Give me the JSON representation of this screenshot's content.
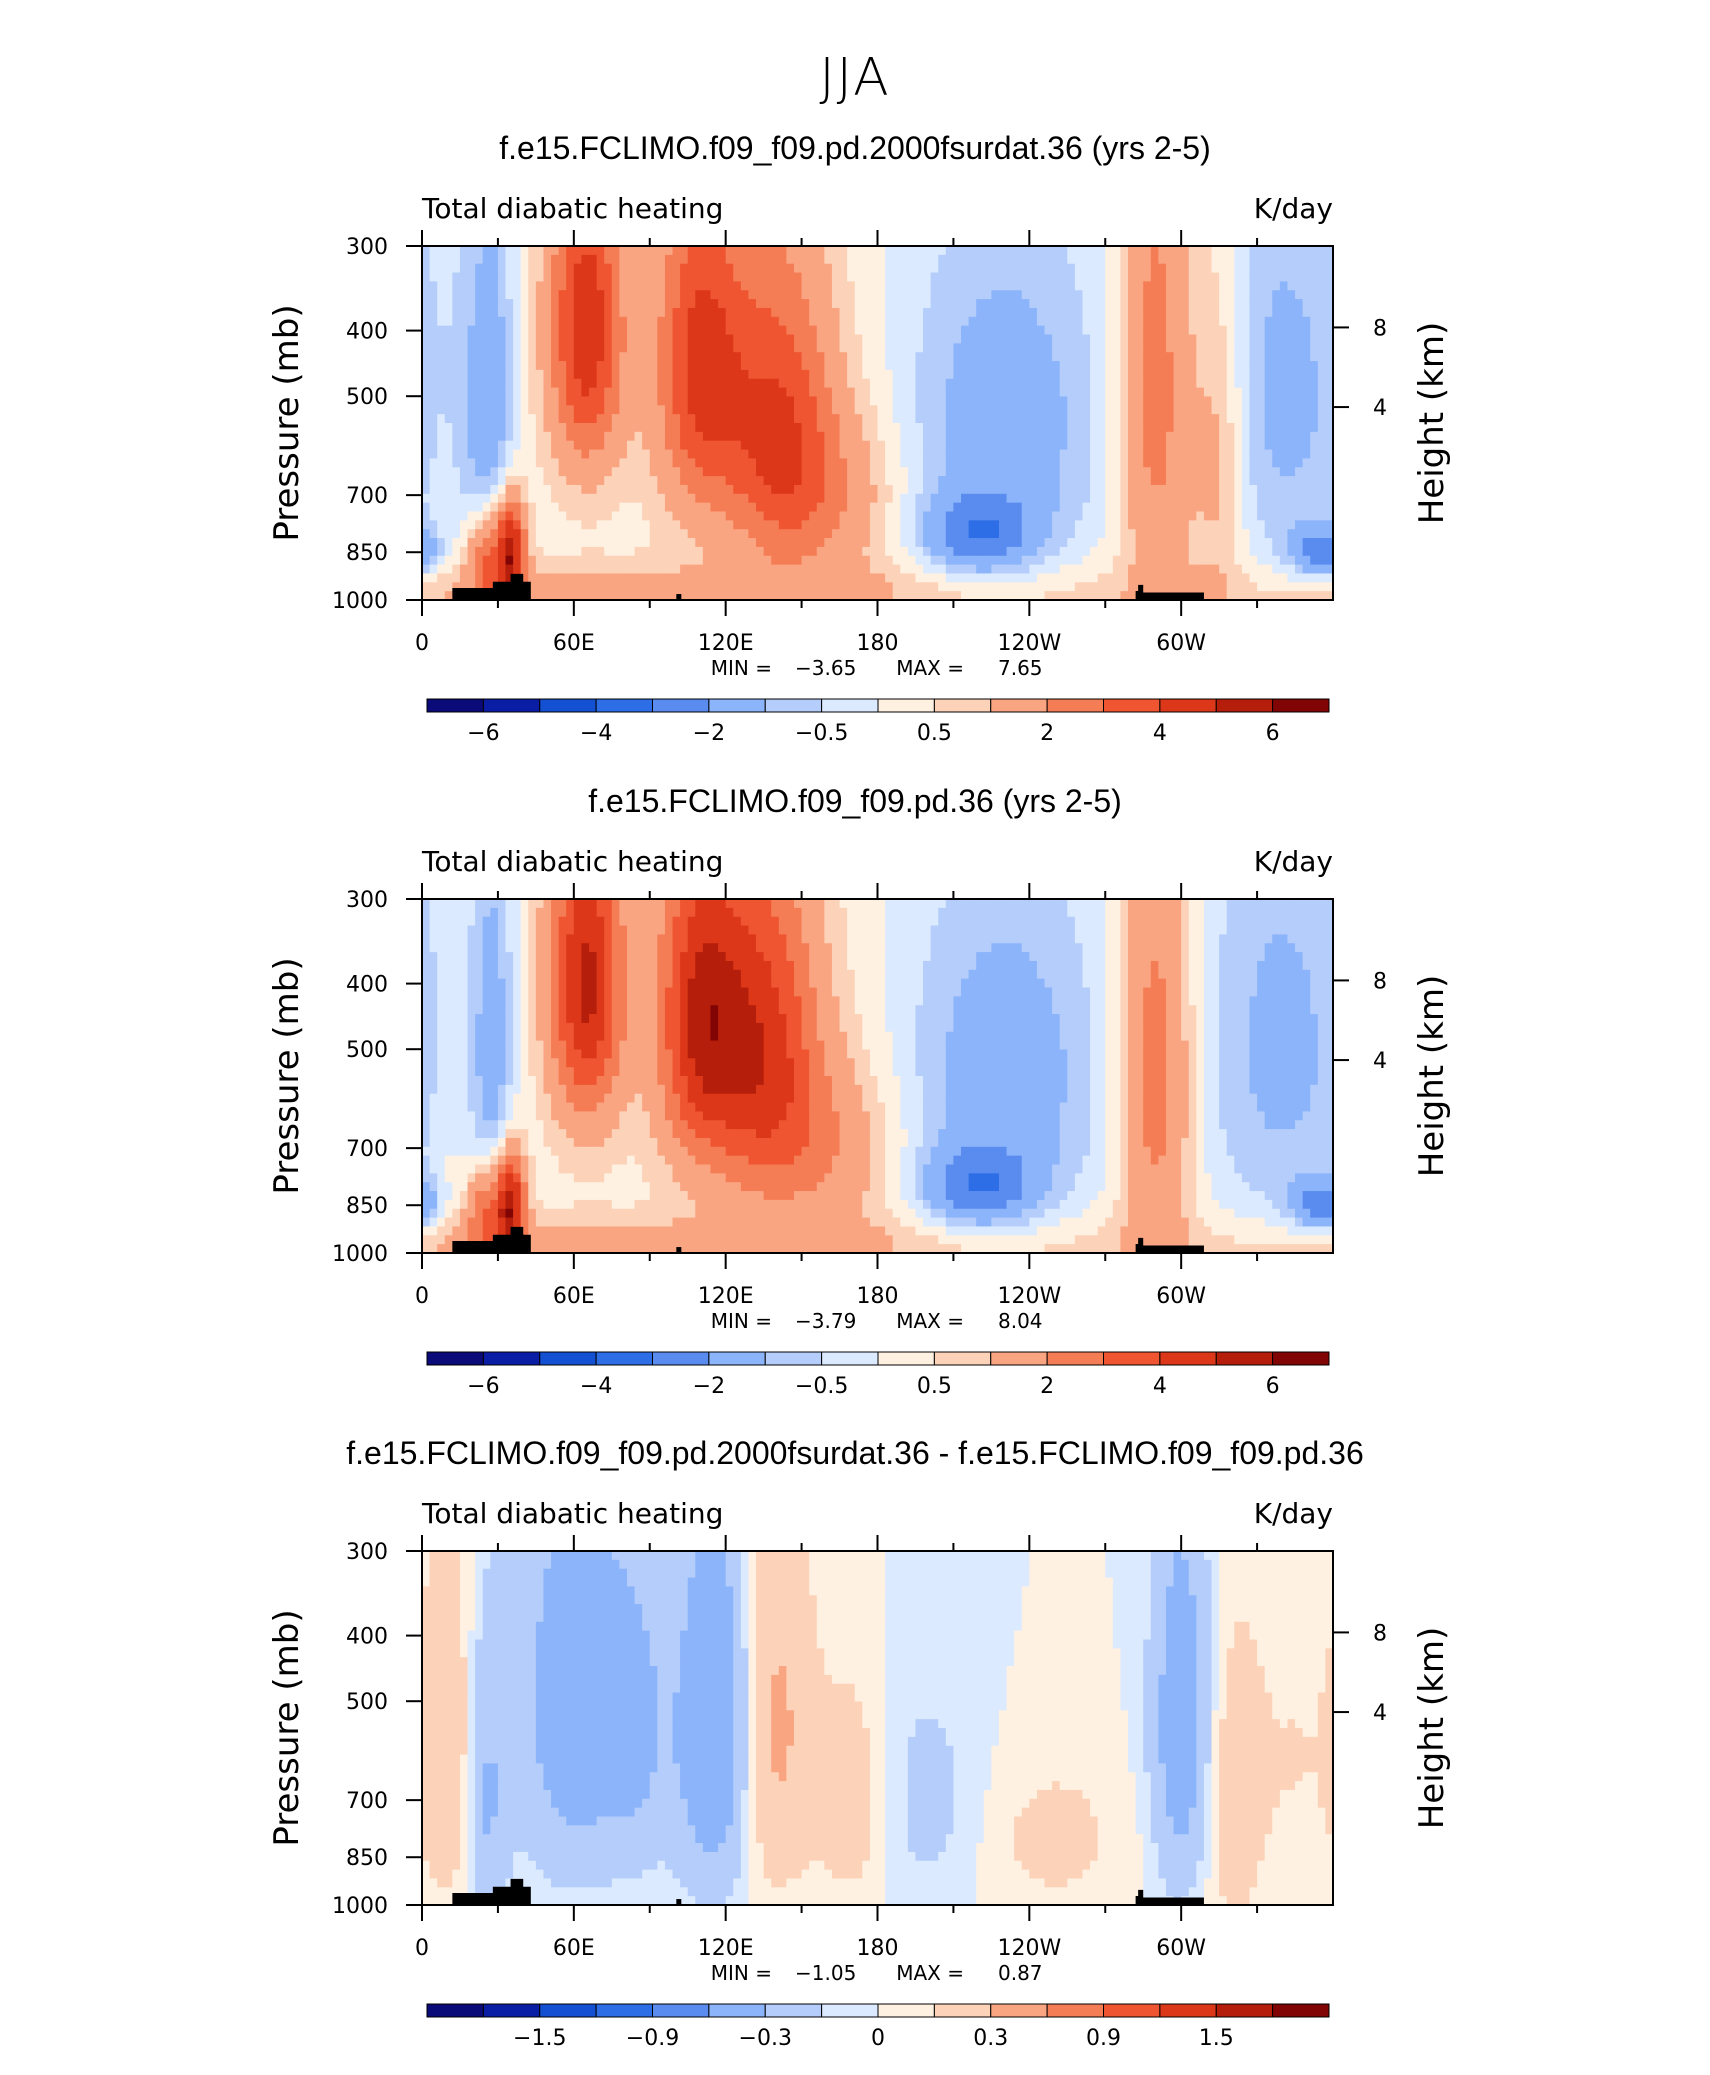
{
  "page": {
    "title": "JJA"
  },
  "panels": [
    {
      "title": "f.e15.FCLIMO.f09_f09.pd.2000fsurdat.36 (yrs 2-5)",
      "left_label": "Total diabatic heating",
      "right_label": "K/day",
      "min_label": "MIN =",
      "min_value": "−3.65",
      "max_label": "MAX =",
      "max_value": "7.65",
      "colorbar": {
        "colors": [
          "#0a0a78",
          "#0a1ea5",
          "#1450d2",
          "#2d6ee6",
          "#5a8cf0",
          "#8cb4fa",
          "#b4cdfa",
          "#dceaff",
          "#fff1e1",
          "#fcd2b9",
          "#faa582",
          "#f57d55",
          "#ee5530",
          "#dc3719",
          "#b41e0a",
          "#820505"
        ],
        "labels": [
          "−6",
          "−4",
          "−2",
          "−0.5",
          "0.5",
          "2",
          "4",
          "6"
        ],
        "label_boundaries": [
          1,
          3,
          5,
          7,
          9,
          11,
          13,
          15
        ]
      }
    },
    {
      "title": "f.e15.FCLIMO.f09_f09.pd.36 (yrs 2-5)",
      "left_label": "Total diabatic heating",
      "right_label": "K/day",
      "min_label": "MIN =",
      "min_value": "−3.79",
      "max_label": "MAX =",
      "max_value": "8.04",
      "colorbar": {
        "colors": [
          "#0a0a78",
          "#0a1ea5",
          "#1450d2",
          "#2d6ee6",
          "#5a8cf0",
          "#8cb4fa",
          "#b4cdfa",
          "#dceaff",
          "#fff1e1",
          "#fcd2b9",
          "#faa582",
          "#f57d55",
          "#ee5530",
          "#dc3719",
          "#b41e0a",
          "#820505"
        ],
        "labels": [
          "−6",
          "−4",
          "−2",
          "−0.5",
          "0.5",
          "2",
          "4",
          "6"
        ],
        "label_boundaries": [
          1,
          3,
          5,
          7,
          9,
          11,
          13,
          15
        ]
      }
    },
    {
      "title": "f.e15.FCLIMO.f09_f09.pd.2000fsurdat.36 - f.e15.FCLIMO.f09_f09.pd.36",
      "left_label": "Total diabatic heating",
      "right_label": "K/day",
      "min_label": "MIN =",
      "min_value": "−1.05",
      "max_label": "MAX =",
      "max_value": "0.87",
      "colorbar": {
        "colors": [
          "#0a0a78",
          "#0a1ea5",
          "#1450d2",
          "#2d6ee6",
          "#5a8cf0",
          "#8cb4fa",
          "#b4cdfa",
          "#dceaff",
          "#fff1e1",
          "#fcd2b9",
          "#faa582",
          "#f57d55",
          "#ee5530",
          "#dc3719",
          "#b41e0a",
          "#820505"
        ],
        "labels": [
          "−1.5",
          "−0.9",
          "−0.3",
          "0",
          "0.3",
          "0.9",
          "1.5"
        ],
        "label_boundaries": [
          2,
          4,
          6,
          8,
          10,
          12,
          14
        ]
      }
    }
  ],
  "chart_data": [
    {
      "type": "heatmap",
      "title": "f.e15.FCLIMO.f09_f09.pd.2000fsurdat.36 (yrs 2-5)",
      "ylabel": "Pressure (mb)",
      "y2label": "Height (km)",
      "x_ticks": [
        "0",
        "60E",
        "120E",
        "180",
        "120W",
        "60W"
      ],
      "y_ticks": [
        "300",
        "400",
        "500",
        "700",
        "850",
        "1000"
      ],
      "y2_ticks": [
        "8",
        "4"
      ],
      "units": "K/day",
      "min": -3.65,
      "max": 7.65,
      "features": [
        {
          "lon": 10,
          "p": 900,
          "value": 0.3,
          "w": 5,
          "h": 600
        },
        {
          "lon": 25,
          "p": 880,
          "value": 3.0,
          "w": 5,
          "h": 200
        },
        {
          "lon": 35,
          "p": 850,
          "value": 5.5,
          "w": 4,
          "h": 200
        },
        {
          "lon": 28,
          "p": 500,
          "value": -1.5,
          "w": 6,
          "h": 500
        },
        {
          "lon": 18,
          "p": 550,
          "value": -0.5,
          "w": 6,
          "h": 500
        },
        {
          "lon": 65,
          "p": 400,
          "value": 4.5,
          "w": 10,
          "h": 300
        },
        {
          "lon": 110,
          "p": 450,
          "value": 4.0,
          "w": 12,
          "h": 350
        },
        {
          "lon": 140,
          "p": 550,
          "value": 3.5,
          "w": 15,
          "h": 400
        },
        {
          "lon": 160,
          "p": 700,
          "value": 1.5,
          "w": 20,
          "h": 300
        },
        {
          "lon": 230,
          "p": 550,
          "value": -1.8,
          "w": 30,
          "h": 500
        },
        {
          "lon": 220,
          "p": 800,
          "value": -2.5,
          "w": 15,
          "h": 150
        },
        {
          "lon": 290,
          "p": 500,
          "value": 2.5,
          "w": 10,
          "h": 600
        },
        {
          "lon": 315,
          "p": 600,
          "value": 1.5,
          "w": 8,
          "h": 500
        },
        {
          "lon": 340,
          "p": 500,
          "value": -1.5,
          "w": 25,
          "h": 600
        },
        {
          "lon": 355,
          "p": 850,
          "value": -2.5,
          "w": 8,
          "h": 100
        },
        {
          "lon": 100,
          "p": 950,
          "value": 0.5,
          "w": 80,
          "h": 100
        }
      ]
    },
    {
      "type": "heatmap",
      "title": "f.e15.FCLIMO.f09_f09.pd.36 (yrs 2-5)",
      "ylabel": "Pressure (mb)",
      "y2label": "Height (km)",
      "x_ticks": [
        "0",
        "60E",
        "120E",
        "180",
        "120W",
        "60W"
      ],
      "y_ticks": [
        "300",
        "400",
        "500",
        "700",
        "850",
        "1000"
      ],
      "y2_ticks": [
        "8",
        "4"
      ],
      "units": "K/day",
      "min": -3.79,
      "max": 8.04,
      "features": [
        {
          "lon": 10,
          "p": 900,
          "value": 0.3,
          "w": 5,
          "h": 600
        },
        {
          "lon": 25,
          "p": 880,
          "value": 3.0,
          "w": 5,
          "h": 200
        },
        {
          "lon": 35,
          "p": 850,
          "value": 5.5,
          "w": 4,
          "h": 200
        },
        {
          "lon": 28,
          "p": 500,
          "value": -1.5,
          "w": 6,
          "h": 500
        },
        {
          "lon": 65,
          "p": 400,
          "value": 5.0,
          "w": 10,
          "h": 300
        },
        {
          "lon": 110,
          "p": 450,
          "value": 4.5,
          "w": 12,
          "h": 350
        },
        {
          "lon": 135,
          "p": 500,
          "value": 4.0,
          "w": 15,
          "h": 400
        },
        {
          "lon": 160,
          "p": 700,
          "value": 1.5,
          "w": 20,
          "h": 300
        },
        {
          "lon": 230,
          "p": 550,
          "value": -1.8,
          "w": 30,
          "h": 500
        },
        {
          "lon": 220,
          "p": 800,
          "value": -2.5,
          "w": 15,
          "h": 150
        },
        {
          "lon": 290,
          "p": 550,
          "value": 2.5,
          "w": 10,
          "h": 600
        },
        {
          "lon": 340,
          "p": 500,
          "value": -1.5,
          "w": 25,
          "h": 600
        },
        {
          "lon": 355,
          "p": 850,
          "value": -2.5,
          "w": 8,
          "h": 100
        },
        {
          "lon": 100,
          "p": 950,
          "value": 0.5,
          "w": 80,
          "h": 100
        }
      ]
    },
    {
      "type": "heatmap",
      "title": "f.e15.FCLIMO.f09_f09.pd.2000fsurdat.36 - f.e15.FCLIMO.f09_f09.pd.36",
      "ylabel": "Pressure (mb)",
      "y2label": "Height (km)",
      "x_ticks": [
        "0",
        "60E",
        "120E",
        "180",
        "120W",
        "60W"
      ],
      "y_ticks": [
        "300",
        "400",
        "500",
        "700",
        "850",
        "1000"
      ],
      "y2_ticks": [
        "8",
        "4"
      ],
      "units": "K/day",
      "min": -1.05,
      "max": 0.87,
      "features": [
        {
          "lon": 12,
          "p": 600,
          "value": 0.25,
          "w": 8,
          "h": 500
        },
        {
          "lon": 25,
          "p": 700,
          "value": -0.35,
          "w": 6,
          "h": 500
        },
        {
          "lon": 60,
          "p": 500,
          "value": -0.5,
          "w": 15,
          "h": 500
        },
        {
          "lon": 85,
          "p": 550,
          "value": -0.3,
          "w": 10,
          "h": 400
        },
        {
          "lon": 115,
          "p": 550,
          "value": -0.6,
          "w": 10,
          "h": 500
        },
        {
          "lon": 140,
          "p": 550,
          "value": 0.35,
          "w": 10,
          "h": 500
        },
        {
          "lon": 170,
          "p": 700,
          "value": 0.2,
          "w": 10,
          "h": 400
        },
        {
          "lon": 200,
          "p": 700,
          "value": -0.15,
          "w": 15,
          "h": 400
        },
        {
          "lon": 250,
          "p": 800,
          "value": 0.15,
          "w": 20,
          "h": 300
        },
        {
          "lon": 300,
          "p": 550,
          "value": -0.5,
          "w": 8,
          "h": 500
        },
        {
          "lon": 320,
          "p": 700,
          "value": 0.2,
          "w": 8,
          "h": 500
        },
        {
          "lon": 345,
          "p": 600,
          "value": 0.1,
          "w": 15,
          "h": 600
        }
      ]
    }
  ]
}
